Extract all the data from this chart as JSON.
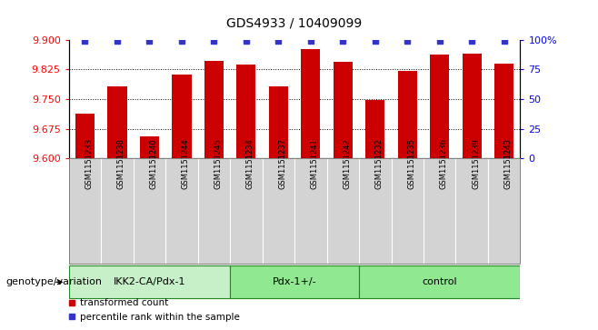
{
  "title": "GDS4933 / 10409099",
  "samples": [
    "GSM1151233",
    "GSM1151238",
    "GSM1151240",
    "GSM1151244",
    "GSM1151245",
    "GSM1151234",
    "GSM1151237",
    "GSM1151241",
    "GSM1151242",
    "GSM1151232",
    "GSM1151235",
    "GSM1151236",
    "GSM1151239",
    "GSM1151243"
  ],
  "bar_values": [
    9.714,
    9.782,
    9.655,
    9.812,
    9.846,
    9.838,
    9.783,
    9.875,
    9.843,
    9.747,
    9.82,
    9.862,
    9.865,
    9.84
  ],
  "percentile_values": [
    99,
    99,
    99,
    99,
    99,
    99,
    99,
    99,
    99,
    99,
    99,
    99,
    99,
    99
  ],
  "groups": [
    {
      "label": "IKK2-CA/Pdx-1",
      "start": 0,
      "end": 5,
      "color": "#c8f0c8"
    },
    {
      "label": "Pdx-1+/-",
      "start": 5,
      "end": 9,
      "color": "#90e890"
    },
    {
      "label": "control",
      "start": 9,
      "end": 14,
      "color": "#90e890"
    }
  ],
  "ylim_left": [
    9.6,
    9.9
  ],
  "ylim_right": [
    0,
    100
  ],
  "yticks_left": [
    9.6,
    9.675,
    9.75,
    9.825,
    9.9
  ],
  "yticks_right": [
    0,
    25,
    50,
    75,
    100
  ],
  "ytick_labels_right": [
    "0",
    "25",
    "50",
    "75",
    "100%"
  ],
  "grid_values": [
    9.675,
    9.75,
    9.825
  ],
  "bar_color": "#cc0000",
  "percentile_color": "#3333cc",
  "bar_width": 0.6,
  "sample_bg_color": "#d3d3d3",
  "label_genotype": "genotype/variation"
}
